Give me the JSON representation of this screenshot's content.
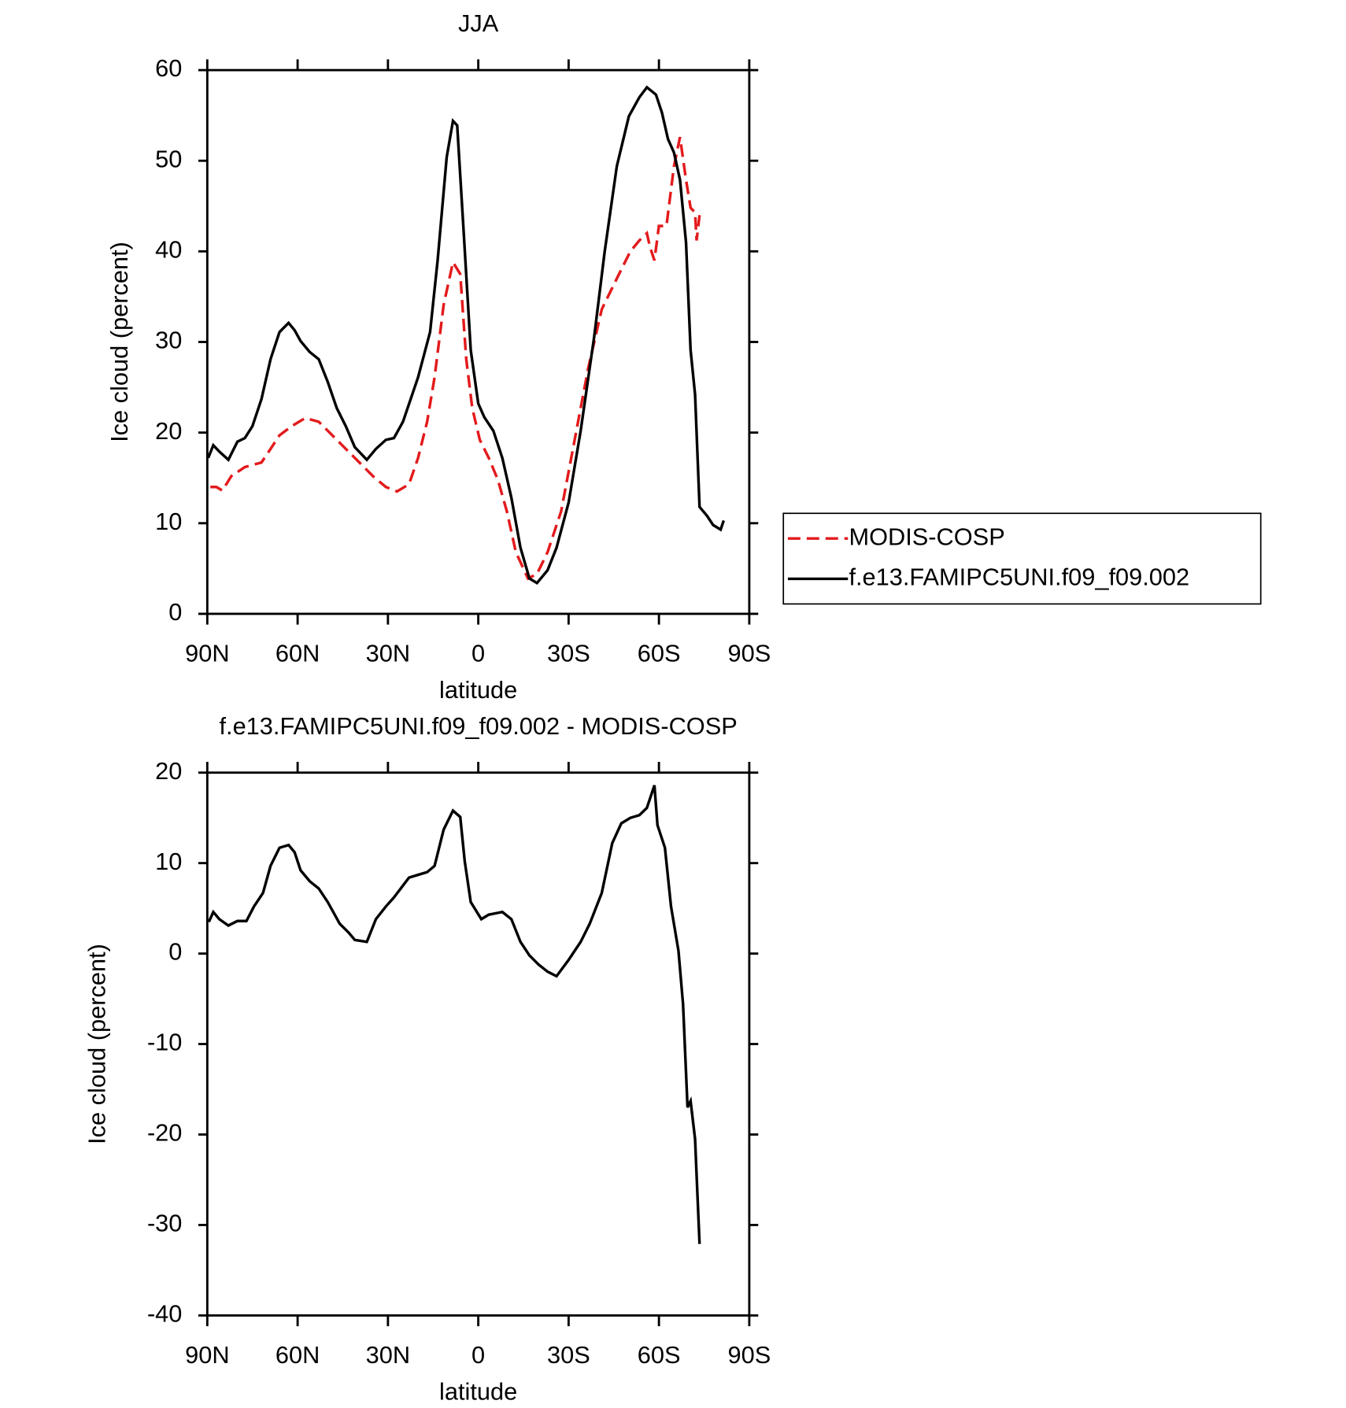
{
  "chart_data": [
    {
      "type": "line",
      "title": "JJA",
      "xlabel": "latitude",
      "ylabel": "Ice cloud (percent)",
      "xlim": [
        90,
        -90
      ],
      "xticks": [
        {
          "value": 90,
          "label": "90N"
        },
        {
          "value": 60,
          "label": "60N"
        },
        {
          "value": 30,
          "label": "30N"
        },
        0,
        {
          "value": -30,
          "label": "30S"
        },
        {
          "value": -60,
          "label": "60S"
        },
        {
          "value": -90,
          "label": "90S"
        }
      ],
      "ylim": [
        0,
        60
      ],
      "yticks": [
        0,
        10,
        20,
        30,
        40,
        50,
        60
      ],
      "legend": "right",
      "series": [
        {
          "name": "MODIS-COSP",
          "color": "#e31a1c",
          "dash": "dashed",
          "x": [
            89,
            87,
            85,
            82,
            77.5,
            72,
            69,
            66,
            62,
            57.5,
            53,
            48.5,
            44,
            39.5,
            35,
            30.7,
            27,
            23,
            20,
            17,
            14.5,
            11.5,
            8.4,
            6,
            4,
            2,
            -0.5,
            -3.5,
            -6.5,
            -9.5,
            -12.5,
            -16.5,
            -19.5,
            -23,
            -27.5,
            -32,
            -36.5,
            -41,
            -46,
            -50.5,
            -53.5,
            -56,
            -57,
            -58.5,
            -60,
            -62.5,
            -65,
            -67,
            -69,
            -70.5,
            -72,
            -72.5,
            -73.5
          ],
          "values": [
            14.0,
            14.0,
            13.6,
            15.2,
            16.2,
            16.7,
            18.2,
            19.7,
            20.7,
            21.6,
            21.2,
            19.7,
            18.2,
            16.7,
            15.2,
            14.0,
            13.5,
            14.3,
            17.2,
            21.2,
            26.1,
            34.1,
            38.8,
            37.5,
            28.1,
            22.7,
            19.2,
            17.2,
            14.8,
            11.3,
            6.8,
            3.9,
            4.4,
            6.8,
            11.3,
            19.2,
            27.1,
            33.6,
            37.0,
            40.0,
            41.2,
            42.0,
            40.5,
            39.0,
            42.8,
            42.8,
            49.4,
            52.6,
            47.9,
            44.8,
            44.3,
            41.2,
            44.0
          ]
        },
        {
          "name": "f.e13.FAMIPC5UNI.f09_f09.002",
          "color": "#000000",
          "dash": "solid",
          "x": [
            89.7,
            88,
            86,
            83,
            80,
            77.5,
            75,
            72,
            69,
            66,
            63,
            61,
            59,
            56,
            53,
            50,
            47,
            44,
            41,
            37,
            34,
            30.7,
            28,
            25,
            20,
            16,
            13.5,
            10.5,
            8.4,
            7,
            5,
            2.5,
            0,
            -2,
            -5,
            -8,
            -11,
            -14,
            -17,
            -19.5,
            -23,
            -26,
            -30,
            -34,
            -38.5,
            -42,
            -46,
            -50,
            -53.5,
            -56,
            -59,
            -61,
            -63,
            -65,
            -67,
            -69,
            -70.5,
            -72,
            -73.5,
            -76,
            -78,
            -80.5,
            -81.5
          ],
          "values": [
            17.2,
            18.6,
            17.9,
            17.0,
            19.0,
            19.4,
            20.7,
            23.7,
            28.1,
            31.1,
            32.1,
            31.3,
            30.1,
            28.9,
            28.1,
            25.6,
            22.7,
            20.7,
            18.4,
            17.0,
            18.2,
            19.2,
            19.4,
            21.2,
            26.1,
            31.1,
            39.0,
            50.4,
            54.4,
            53.9,
            43.0,
            29.1,
            23.2,
            21.7,
            20.2,
            17.2,
            12.8,
            7.3,
            3.9,
            3.4,
            4.8,
            7.3,
            12.3,
            20.2,
            30.6,
            40.0,
            49.4,
            54.9,
            57.0,
            58.1,
            57.3,
            55.3,
            52.4,
            50.9,
            47.9,
            41.0,
            29.1,
            24.2,
            11.8,
            10.8,
            9.8,
            9.3,
            10.3
          ]
        }
      ]
    },
    {
      "type": "line",
      "title": "f.e13.FAMIPC5UNI.f09_f09.002 - MODIS-COSP",
      "xlabel": "latitude",
      "ylabel": "Ice cloud (percent)",
      "xlim": [
        90,
        -90
      ],
      "xticks": [
        {
          "value": 90,
          "label": "90N"
        },
        {
          "value": 60,
          "label": "60N"
        },
        {
          "value": 30,
          "label": "30N"
        },
        0,
        {
          "value": -30,
          "label": "30S"
        },
        {
          "value": -60,
          "label": "60S"
        },
        {
          "value": -90,
          "label": "90S"
        }
      ],
      "ylim": [
        -40,
        20
      ],
      "yticks": [
        -40,
        -30,
        -20,
        -10,
        0,
        10,
        20
      ],
      "series": [
        {
          "color": "#000000",
          "dash": "solid",
          "x": [
            89.5,
            88,
            86,
            83,
            80,
            77,
            74.5,
            71.5,
            69,
            66,
            63,
            61,
            59,
            56,
            53,
            50,
            46,
            43,
            41,
            37,
            34,
            30.7,
            28,
            23,
            20,
            17,
            14.5,
            11.5,
            8.4,
            6,
            4.5,
            2.5,
            -1,
            -3.5,
            -8,
            -11,
            -14,
            -17,
            -20,
            -23,
            -26,
            -30,
            -34,
            -37,
            -41,
            -44.5,
            -47.5,
            -50.5,
            -53.5,
            -56,
            -58.5,
            -59.5,
            -62,
            -64,
            -66.5,
            -68,
            -69.5,
            -70.5,
            -72,
            -72.5,
            -73.5
          ],
          "values": [
            3.5,
            4.6,
            3.8,
            3.1,
            3.6,
            3.6,
            5.2,
            6.7,
            9.7,
            11.7,
            12.0,
            11.2,
            9.2,
            8.0,
            7.2,
            5.7,
            3.3,
            2.3,
            1.5,
            1.3,
            3.8,
            5.2,
            6.2,
            8.4,
            8.7,
            9.0,
            9.7,
            13.7,
            15.8,
            15.1,
            10.2,
            5.7,
            3.8,
            4.3,
            4.6,
            3.8,
            1.3,
            -0.2,
            -1.2,
            -2.0,
            -2.5,
            -0.7,
            1.3,
            3.3,
            6.7,
            12.2,
            14.4,
            15.0,
            15.3,
            16.1,
            18.6,
            14.2,
            11.7,
            5.2,
            0.3,
            -5.6,
            -17.0,
            -16.3,
            -20.5,
            -24.5,
            -32.1
          ]
        }
      ]
    }
  ]
}
